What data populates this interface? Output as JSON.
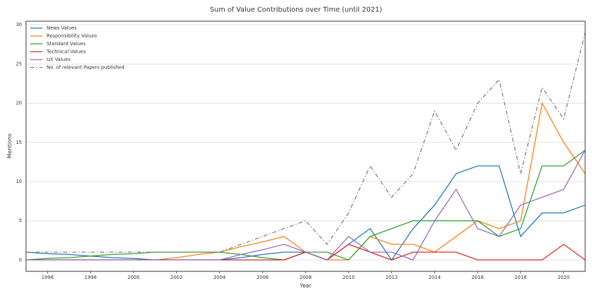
{
  "chart_data": {
    "type": "line",
    "title": "Sum of Value Contributions over Time (until 2021)",
    "xlabel": "Year",
    "ylabel": "Mentions",
    "x": [
      1995,
      1996,
      1997,
      1998,
      1999,
      2000,
      2001,
      2002,
      2003,
      2004,
      2005,
      2006,
      2007,
      2008,
      2009,
      2010,
      2011,
      2012,
      2013,
      2014,
      2015,
      2016,
      2017,
      2018,
      2019,
      2020,
      2021
    ],
    "series": [
      {
        "name": "News Values",
        "color": "#1f77b4",
        "linestyle": "solid",
        "values": [
          1,
          0.8,
          0.7,
          0.5,
          0.3,
          0.2,
          0,
          0,
          0,
          0,
          0.3,
          0.7,
          1,
          1,
          0,
          2,
          4,
          0,
          4,
          7,
          11,
          12,
          12,
          3,
          6,
          6,
          7
        ]
      },
      {
        "name": "Responsibility Values",
        "color": "#ff7f0e",
        "linestyle": "solid",
        "values": [
          0,
          0,
          0,
          0,
          0,
          0,
          0,
          0.3,
          0.7,
          1,
          1.7,
          2.3,
          3,
          1,
          0,
          0,
          3,
          2,
          2,
          1,
          3,
          5,
          4,
          5,
          20,
          15,
          11
        ]
      },
      {
        "name": "Standard Values",
        "color": "#2ca02c",
        "linestyle": "solid",
        "values": [
          0,
          0.2,
          0.3,
          0.5,
          0.7,
          0.8,
          1,
          1,
          1,
          1,
          0.7,
          0.3,
          0,
          1,
          1,
          0,
          3,
          4,
          5,
          5,
          5,
          5,
          3,
          4,
          12,
          12,
          14
        ]
      },
      {
        "name": "Technical Values",
        "color": "#d62728",
        "linestyle": "solid",
        "values": [
          0,
          0,
          0,
          0,
          0,
          0,
          0,
          0,
          0,
          0,
          0,
          0,
          0,
          1,
          0,
          2,
          1,
          0,
          1,
          1,
          1,
          0,
          0,
          0,
          0,
          2,
          0
        ]
      },
      {
        "name": "UX Values",
        "color": "#9467bd",
        "linestyle": "solid",
        "values": [
          0,
          0,
          0,
          0,
          0,
          0,
          0,
          0,
          0,
          0,
          0.7,
          1.3,
          2,
          1,
          0,
          3,
          1,
          1,
          0,
          5,
          9,
          4,
          3,
          7,
          8,
          9,
          14
        ]
      },
      {
        "name": "No. of relevant Papers published",
        "color": "#7f7f7f",
        "linestyle": "dashdot",
        "values": [
          1,
          1,
          1,
          1,
          1,
          1,
          1,
          1,
          1,
          1,
          2,
          3,
          4,
          5,
          2,
          6,
          12,
          8,
          11,
          19,
          14,
          20,
          23,
          11,
          22,
          18,
          29
        ]
      }
    ],
    "xlim": [
      1995,
      2021
    ],
    "xticks": [
      1996,
      1998,
      2000,
      2002,
      2004,
      2006,
      2008,
      2010,
      2012,
      2014,
      2016,
      2018,
      2020
    ],
    "ylim": [
      -1.45,
      30.45
    ],
    "yticks": [
      0,
      5,
      10,
      15,
      20,
      25,
      30
    ],
    "grid": true,
    "legend": "upper left"
  }
}
